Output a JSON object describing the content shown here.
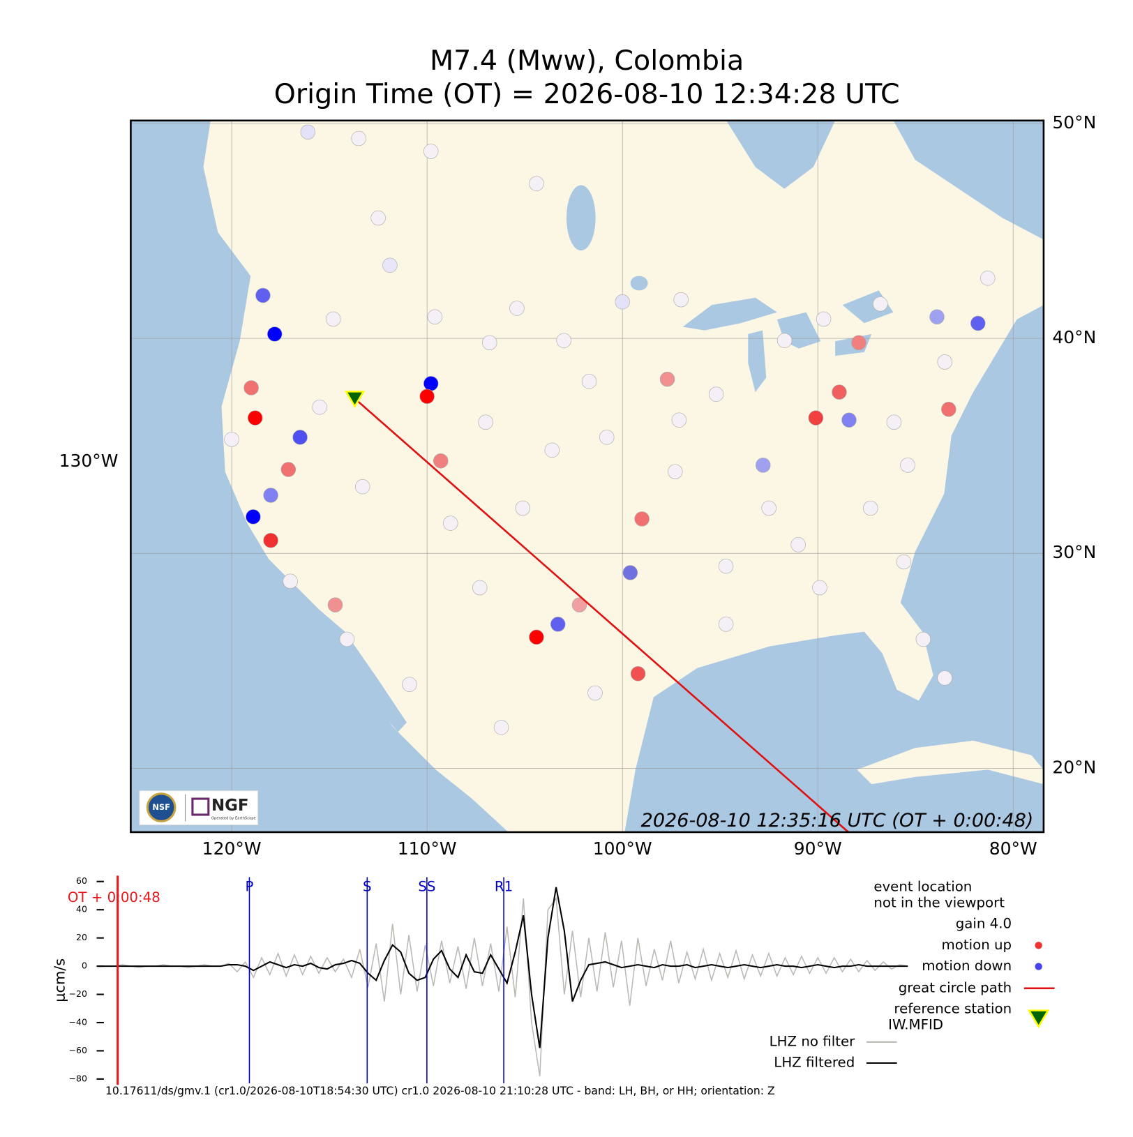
{
  "title": [
    "M7.4 (Mww), Colombia",
    "Origin Time (OT) = 2026-08-10 12:34:28 UTC"
  ],
  "map": {
    "lon_ticks": [
      {
        "value": -130,
        "label": "130°W"
      },
      {
        "value": -120,
        "label": "120°W"
      },
      {
        "value": -110,
        "label": "110°W"
      },
      {
        "value": -100,
        "label": "100°W"
      },
      {
        "value": -90,
        "label": "90°W"
      },
      {
        "value": -80,
        "label": "80°W"
      }
    ],
    "lat_ticks": [
      {
        "value": 50,
        "label": "50°N"
      },
      {
        "value": 40,
        "label": "40°N"
      },
      {
        "value": 30,
        "label": "30°N"
      },
      {
        "value": 20,
        "label": "20°N"
      }
    ],
    "timestamp": "2026-08-10 12:35:16 UTC (OT + 0:00:48)",
    "logos": [
      "NSF",
      "NGF",
      "Operated by EarthScope"
    ],
    "reference_station": {
      "lon": -113.7,
      "lat": 37.2
    },
    "great_circle_path": {
      "lon": [
        -113.7,
        -88.4
      ],
      "lat": [
        37.2,
        17.0
      ]
    },
    "stations": [
      {
        "lon": -116.1,
        "lat": 49.6,
        "color": "#e4e2f8"
      },
      {
        "lon": -113.5,
        "lat": 49.3,
        "color": "#f4f0f6"
      },
      {
        "lon": -109.8,
        "lat": 48.7,
        "color": "#f4f0f6"
      },
      {
        "lon": -104.4,
        "lat": 47.2,
        "color": "#f4f0f6"
      },
      {
        "lon": -112.5,
        "lat": 45.6,
        "color": "#f4f0f6"
      },
      {
        "lon": -111.9,
        "lat": 43.4,
        "color": "#e8e6f8"
      },
      {
        "lon": -109.6,
        "lat": 41.0,
        "color": "#f4f0f6"
      },
      {
        "lon": -105.4,
        "lat": 41.4,
        "color": "#f4f0f6"
      },
      {
        "lon": -100.0,
        "lat": 41.7,
        "color": "#e4e2f8"
      },
      {
        "lon": -97.0,
        "lat": 41.8,
        "color": "#f4f0f6"
      },
      {
        "lon": -106.8,
        "lat": 39.8,
        "color": "#f4f0f6"
      },
      {
        "lon": -103.0,
        "lat": 39.9,
        "color": "#f4f0f6"
      },
      {
        "lon": -101.7,
        "lat": 38.0,
        "color": "#f4f0f6"
      },
      {
        "lon": -107.0,
        "lat": 36.1,
        "color": "#f4f0f6"
      },
      {
        "lon": -100.8,
        "lat": 35.4,
        "color": "#f4f0f6"
      },
      {
        "lon": -97.1,
        "lat": 36.2,
        "color": "#f4f0f6"
      },
      {
        "lon": -95.2,
        "lat": 37.4,
        "color": "#f4f0f6"
      },
      {
        "lon": -91.7,
        "lat": 39.9,
        "color": "#f4f0f6"
      },
      {
        "lon": -89.7,
        "lat": 40.9,
        "color": "#f4f0f6"
      },
      {
        "lon": -86.8,
        "lat": 41.6,
        "color": "#f4f0f6"
      },
      {
        "lon": -83.5,
        "lat": 38.9,
        "color": "#f4f0f6"
      },
      {
        "lon": -81.3,
        "lat": 42.8,
        "color": "#f4f0f6"
      },
      {
        "lon": -85.4,
        "lat": 34.1,
        "color": "#f4f0f6"
      },
      {
        "lon": -87.3,
        "lat": 32.1,
        "color": "#f4f0f6"
      },
      {
        "lon": -91.0,
        "lat": 30.4,
        "color": "#f4f0f6"
      },
      {
        "lon": -94.7,
        "lat": 29.4,
        "color": "#f4f0f6"
      },
      {
        "lon": -89.9,
        "lat": 28.4,
        "color": "#f4f0f6"
      },
      {
        "lon": -85.6,
        "lat": 29.6,
        "color": "#f4f0f6"
      },
      {
        "lon": -84.6,
        "lat": 26.0,
        "color": "#f4f0f6"
      },
      {
        "lon": -83.5,
        "lat": 24.2,
        "color": "#f4f0f6"
      },
      {
        "lon": -101.4,
        "lat": 23.5,
        "color": "#f4f0f6"
      },
      {
        "lon": -106.2,
        "lat": 21.9,
        "color": "#f4f0f6"
      },
      {
        "lon": -110.9,
        "lat": 23.9,
        "color": "#f4f0f6"
      },
      {
        "lon": -114.1,
        "lat": 26.0,
        "color": "#f4f0f6"
      },
      {
        "lon": -107.3,
        "lat": 28.4,
        "color": "#f4f0f6"
      },
      {
        "lon": -108.8,
        "lat": 31.4,
        "color": "#f4f0f6"
      },
      {
        "lon": -113.3,
        "lat": 33.1,
        "color": "#f4f0f6"
      },
      {
        "lon": -115.5,
        "lat": 36.8,
        "color": "#f4f0f6"
      },
      {
        "lon": -120.0,
        "lat": 35.3,
        "color": "#f4f0f6"
      },
      {
        "lon": -117.0,
        "lat": 28.7,
        "color": "#f4f0f6"
      },
      {
        "lon": -114.8,
        "lat": 40.9,
        "color": "#f4f0f6"
      },
      {
        "lon": -103.6,
        "lat": 34.8,
        "color": "#f4f0f6"
      },
      {
        "lon": -97.3,
        "lat": 33.8,
        "color": "#f4f0f6"
      },
      {
        "lon": -92.5,
        "lat": 32.1,
        "color": "#f4f0f6"
      },
      {
        "lon": -105.1,
        "lat": 32.1,
        "color": "#f4f0f6"
      },
      {
        "lon": -94.7,
        "lat": 26.7,
        "color": "#f4f0f6"
      },
      {
        "lon": -86.1,
        "lat": 36.1,
        "color": "#f4f0f6"
      },
      {
        "lon": -117.8,
        "lat": 40.2,
        "color": "#0000ff"
      },
      {
        "lon": -118.4,
        "lat": 42.0,
        "color": "#6060f0"
      },
      {
        "lon": -109.8,
        "lat": 37.9,
        "color": "#0000ff"
      },
      {
        "lon": -110.0,
        "lat": 37.3,
        "color": "#ff0000"
      },
      {
        "lon": -118.8,
        "lat": 36.3,
        "color": "#ff0000"
      },
      {
        "lon": -118.9,
        "lat": 31.7,
        "color": "#0000ff"
      },
      {
        "lon": -118.0,
        "lat": 30.6,
        "color": "#f03030"
      },
      {
        "lon": -116.5,
        "lat": 35.4,
        "color": "#5050f0"
      },
      {
        "lon": -104.4,
        "lat": 26.1,
        "color": "#ff0000"
      },
      {
        "lon": -103.3,
        "lat": 26.7,
        "color": "#6060f0"
      },
      {
        "lon": -99.2,
        "lat": 24.4,
        "color": "#f05050"
      },
      {
        "lon": -90.1,
        "lat": 36.3,
        "color": "#f04040"
      },
      {
        "lon": -81.8,
        "lat": 40.7,
        "color": "#6060f0"
      },
      {
        "lon": -99.0,
        "lat": 31.6,
        "color": "#f07070"
      },
      {
        "lon": -88.9,
        "lat": 37.5,
        "color": "#f06060"
      },
      {
        "lon": -117.1,
        "lat": 33.9,
        "color": "#f07070"
      },
      {
        "lon": -119.0,
        "lat": 37.7,
        "color": "#f07070"
      },
      {
        "lon": -109.3,
        "lat": 34.3,
        "color": "#f08080"
      },
      {
        "lon": -114.7,
        "lat": 27.6,
        "color": "#f09090"
      },
      {
        "lon": -99.6,
        "lat": 29.1,
        "color": "#7070e0"
      },
      {
        "lon": -87.9,
        "lat": 39.8,
        "color": "#f08080"
      },
      {
        "lon": -88.4,
        "lat": 36.2,
        "color": "#8080f0"
      },
      {
        "lon": -83.9,
        "lat": 41.0,
        "color": "#a0a0f0"
      },
      {
        "lon": -97.7,
        "lat": 38.1,
        "color": "#f09090"
      },
      {
        "lon": -92.8,
        "lat": 34.1,
        "color": "#a0a0f0"
      },
      {
        "lon": -83.3,
        "lat": 36.7,
        "color": "#f07070"
      },
      {
        "lon": -102.2,
        "lat": 27.6,
        "color": "#f0a0a0"
      },
      {
        "lon": -118.0,
        "lat": 32.7,
        "color": "#8080f0"
      }
    ]
  },
  "chart_data": {
    "type": "line",
    "ylabel": "μcm/s",
    "ylim": [
      -80,
      60
    ],
    "yticks": [
      60,
      40,
      20,
      0,
      {
        "value": -20,
        "label": "−20"
      },
      {
        "value": -40,
        "label": "−40"
      },
      {
        "value": -60,
        "label": "−60"
      },
      {
        "value": -80,
        "label": "−80"
      }
    ],
    "origin_marker": {
      "label": "OT + 0:00:48",
      "index": 2.4,
      "color": "#e8191b"
    },
    "phases": [
      {
        "label": "P",
        "index": 18.5
      },
      {
        "label": "S",
        "index": 32.9
      },
      {
        "label": "SS",
        "index": 40.2
      },
      {
        "label": "R1",
        "index": 49.6
      }
    ],
    "phase_color": "#0000cc",
    "series": [
      {
        "name": "LHZ no filter",
        "color": "#b9b9b4",
        "values": [
          0,
          0,
          0,
          1,
          0,
          -1,
          0,
          0,
          1,
          0,
          0,
          -1,
          0,
          1,
          0,
          0,
          2,
          -4,
          3,
          -8,
          6,
          -6,
          9,
          -7,
          8,
          -6,
          7,
          -5,
          6,
          -4,
          5,
          -8,
          12,
          -15,
          16,
          -25,
          30,
          -20,
          22,
          -18,
          15,
          -14,
          18,
          -12,
          14,
          -16,
          20,
          -14,
          16,
          -18,
          28,
          -22,
          48,
          -40,
          -78,
          40,
          48,
          -20,
          25,
          -22,
          20,
          -18,
          24,
          -15,
          18,
          -28,
          20,
          -14,
          12,
          -10,
          18,
          -12,
          10,
          -9,
          12,
          -10,
          9,
          -8,
          11,
          -9,
          8,
          -7,
          9,
          -7,
          6,
          -6,
          7,
          -5,
          6,
          -5,
          6,
          -4,
          5,
          -4,
          4,
          -3,
          3,
          -2,
          1,
          0
        ]
      },
      {
        "name": "LHZ filtered",
        "color": "#000000",
        "values": [
          0,
          0,
          0,
          0,
          0,
          0,
          0,
          0,
          0,
          0,
          0,
          0,
          0,
          0,
          0,
          0,
          1,
          1,
          0,
          -3,
          0,
          3,
          1,
          -1,
          1,
          0,
          2,
          -1,
          -2,
          1,
          2,
          4,
          2,
          -5,
          -10,
          4,
          15,
          10,
          -5,
          -10,
          -8,
          5,
          11,
          -2,
          -8,
          8,
          -4,
          -5,
          8,
          -2,
          -12,
          10,
          36,
          -20,
          -58,
          20,
          56,
          25,
          -25,
          -10,
          1,
          2,
          3,
          1,
          -1,
          0,
          1,
          0,
          -1,
          1,
          0,
          0,
          1,
          -1,
          0,
          1,
          0,
          -1,
          0,
          1,
          0,
          -1,
          0,
          1,
          0,
          0,
          -1,
          0,
          1,
          0,
          -1,
          0,
          0,
          1,
          0,
          0,
          0,
          0,
          0,
          0
        ]
      }
    ],
    "legend": {
      "note": [
        "event location",
        "not in the viewport"
      ],
      "gain": "gain  4.0",
      "motion_up": {
        "label": "motion up",
        "color": "#ee3333"
      },
      "motion_down": {
        "label": "motion down",
        "color": "#4444ee"
      },
      "path": {
        "label": "great circle path",
        "color": "#e01010"
      },
      "station": {
        "label": "reference station",
        "code": "IW.MFID",
        "color": "#006400",
        "edge": "#ffff00"
      }
    },
    "footer": "10.17611/ds/gmv.1 (cr1.0/2026-08-10T18:54:30 UTC) cr1.0 2026-08-10 21:10:28 UTC - band: LH, BH, or HH; orientation: Z"
  }
}
